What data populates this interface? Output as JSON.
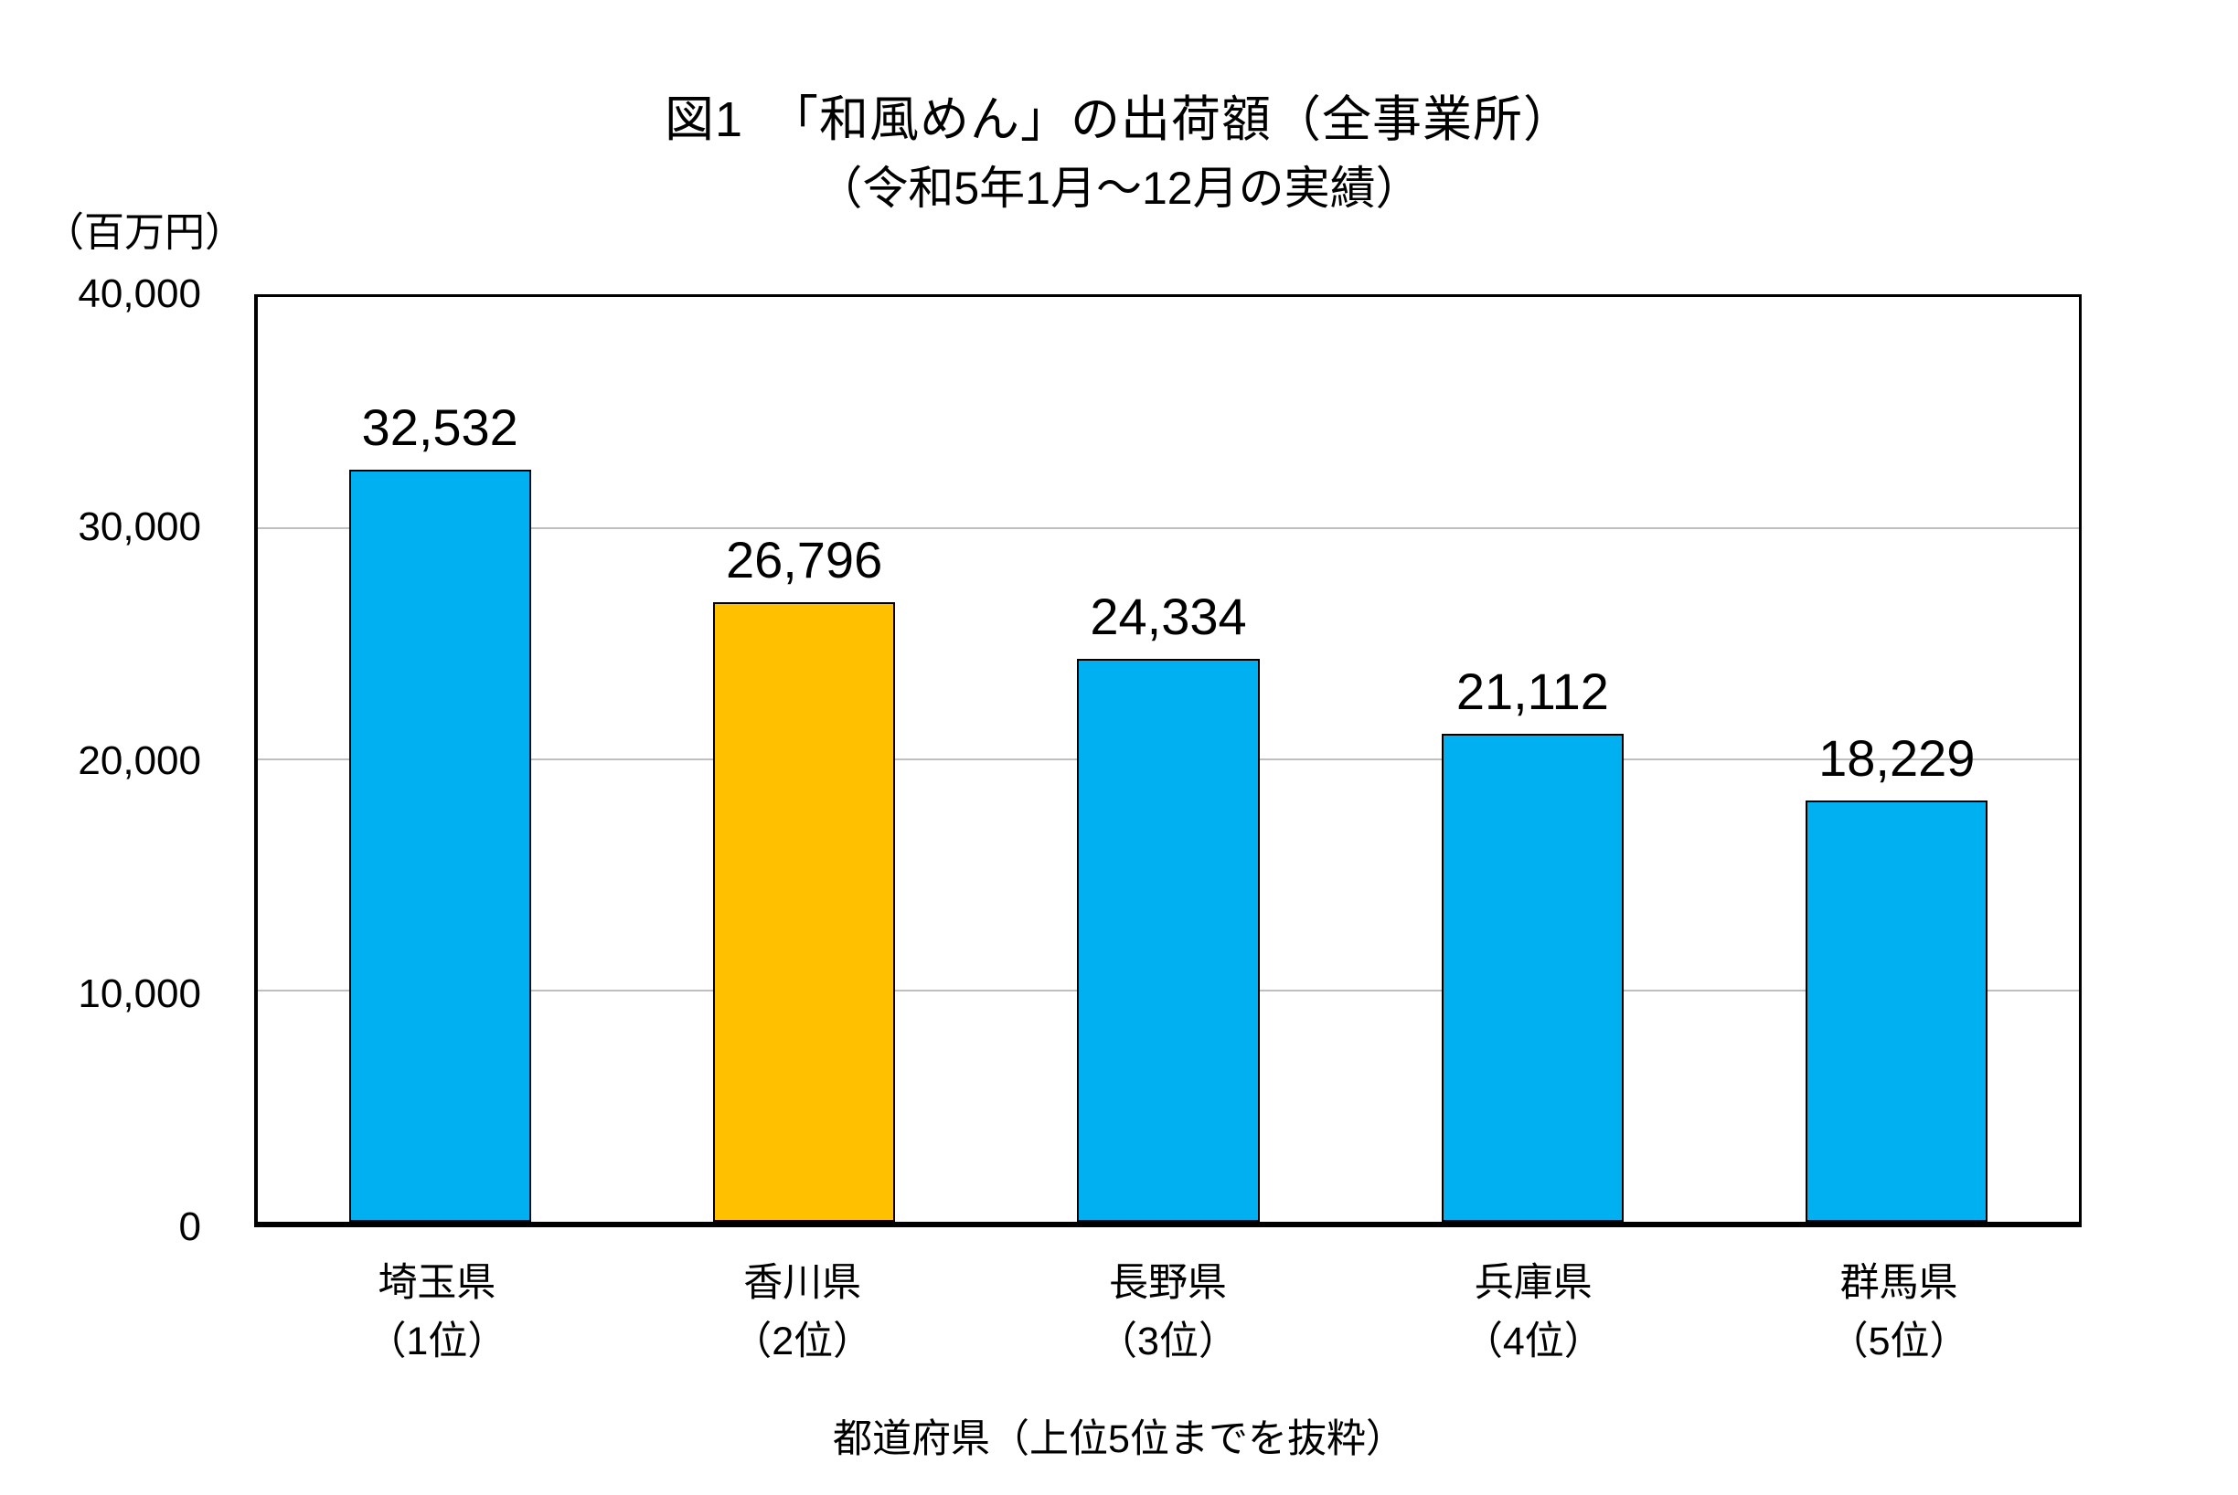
{
  "title": "図1　「和風めん」の出荷額（全事業所）",
  "subtitle": "（令和5年1月～12月の実績）",
  "unit_label": "（百万円）",
  "xaxis_label": "都道府県（上位5位までを抜粋）",
  "colors": {
    "bar_default": "#00B0F0",
    "bar_highlight": "#FFC000",
    "bar_border": "#000000",
    "gridline": "#BFBFBF",
    "axis": "#000000"
  },
  "chart_data": {
    "type": "bar",
    "title": "図1　「和風めん」の出荷額（全事業所）",
    "subtitle": "（令和5年1月～12月の実績）",
    "xlabel": "都道府県（上位5位までを抜粋）",
    "ylabel": "（百万円）",
    "ylim": [
      0,
      40000
    ],
    "yticks": [
      0,
      10000,
      20000,
      30000,
      40000
    ],
    "ytick_labels": [
      "40,000",
      "30,000",
      "20,000",
      "10,000",
      "0"
    ],
    "grid": true,
    "legend": false,
    "categories": [
      {
        "name": "埼玉県",
        "rank": "（1位）"
      },
      {
        "name": "香川県",
        "rank": "（2位）"
      },
      {
        "name": "長野県",
        "rank": "（3位）"
      },
      {
        "name": "兵庫県",
        "rank": "（4位）"
      },
      {
        "name": "群馬県",
        "rank": "（5位）"
      }
    ],
    "values": [
      32532,
      26796,
      24334,
      21112,
      18229
    ],
    "value_labels": [
      "32,532",
      "26,796",
      "24,334",
      "21,112",
      "18,229"
    ],
    "bar_colors": [
      "#00B0F0",
      "#FFC000",
      "#00B0F0",
      "#00B0F0",
      "#00B0F0"
    ],
    "highlight_index": 1
  }
}
